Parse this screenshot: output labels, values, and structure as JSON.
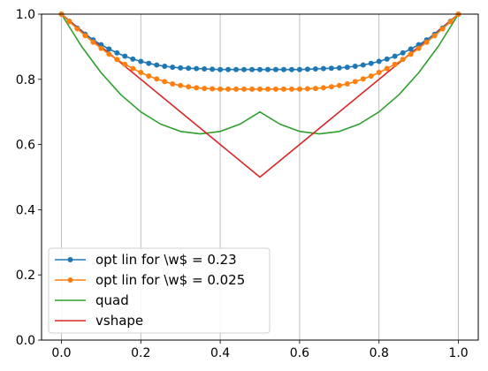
{
  "chart_data": {
    "type": "line",
    "title": "",
    "xlabel": "",
    "ylabel": "",
    "xlim": [
      -0.05,
      1.05
    ],
    "ylim": [
      0.0,
      1.0
    ],
    "xticks": [
      0.0,
      0.2,
      0.4,
      0.6,
      0.8,
      1.0
    ],
    "xtick_labels": [
      "0.0",
      "0.2",
      "0.4",
      "0.6",
      "0.8",
      "1.0"
    ],
    "yticks": [
      0.0,
      0.2,
      0.4,
      0.6,
      0.8,
      1.0
    ],
    "ytick_labels": [
      "0.0",
      "0.2",
      "0.4",
      "0.6",
      "0.8",
      "1.0"
    ],
    "grid": "vertical",
    "legend_position": "lower-left",
    "series": [
      {
        "name": "opt lin for \\w$ = 0.23",
        "color": "#1f77b4",
        "marker": "dot",
        "x": [
          0.0,
          0.02,
          0.04,
          0.06,
          0.08,
          0.1,
          0.12,
          0.14,
          0.16,
          0.18,
          0.2,
          0.22,
          0.24,
          0.26,
          0.28,
          0.3,
          0.32,
          0.34,
          0.36,
          0.38,
          0.4,
          0.42,
          0.44,
          0.46,
          0.48,
          0.5,
          0.52,
          0.54,
          0.56,
          0.58,
          0.6,
          0.62,
          0.64,
          0.66,
          0.68,
          0.7,
          0.72,
          0.74,
          0.76,
          0.78,
          0.8,
          0.82,
          0.84,
          0.86,
          0.88,
          0.9,
          0.92,
          0.94,
          0.96,
          0.98,
          1.0
        ],
        "y": [
          1.0,
          0.978,
          0.957,
          0.938,
          0.921,
          0.906,
          0.893,
          0.881,
          0.871,
          0.862,
          0.855,
          0.849,
          0.844,
          0.84,
          0.837,
          0.835,
          0.834,
          0.833,
          0.832,
          0.831,
          0.83,
          0.83,
          0.83,
          0.83,
          0.83,
          0.83,
          0.83,
          0.83,
          0.83,
          0.83,
          0.83,
          0.831,
          0.832,
          0.833,
          0.834,
          0.835,
          0.837,
          0.84,
          0.844,
          0.849,
          0.855,
          0.862,
          0.871,
          0.881,
          0.893,
          0.906,
          0.921,
          0.938,
          0.957,
          0.978,
          1.0
        ]
      },
      {
        "name": "opt lin for \\w$ = 0.025",
        "color": "#ff7f0e",
        "marker": "dot",
        "x": [
          0.0,
          0.02,
          0.04,
          0.06,
          0.08,
          0.1,
          0.12,
          0.14,
          0.16,
          0.18,
          0.2,
          0.22,
          0.24,
          0.26,
          0.28,
          0.3,
          0.32,
          0.34,
          0.36,
          0.38,
          0.4,
          0.42,
          0.44,
          0.46,
          0.48,
          0.5,
          0.52,
          0.54,
          0.56,
          0.58,
          0.6,
          0.62,
          0.64,
          0.66,
          0.68,
          0.7,
          0.72,
          0.74,
          0.76,
          0.78,
          0.8,
          0.82,
          0.84,
          0.86,
          0.88,
          0.9,
          0.92,
          0.94,
          0.96,
          0.98,
          1.0
        ],
        "y": [
          1.0,
          0.977,
          0.955,
          0.934,
          0.914,
          0.895,
          0.877,
          0.861,
          0.846,
          0.833,
          0.821,
          0.81,
          0.801,
          0.793,
          0.786,
          0.781,
          0.777,
          0.774,
          0.772,
          0.771,
          0.77,
          0.77,
          0.77,
          0.77,
          0.77,
          0.77,
          0.77,
          0.77,
          0.77,
          0.77,
          0.77,
          0.771,
          0.772,
          0.774,
          0.777,
          0.781,
          0.786,
          0.793,
          0.801,
          0.81,
          0.821,
          0.833,
          0.846,
          0.861,
          0.877,
          0.895,
          0.914,
          0.934,
          0.955,
          0.977,
          1.0
        ]
      },
      {
        "name": "quad",
        "color": "#2ca02c",
        "marker": "none",
        "x": [
          0.0,
          0.05,
          0.1,
          0.15,
          0.2,
          0.25,
          0.3,
          0.35,
          0.4,
          0.45,
          0.5,
          0.55,
          0.6,
          0.65,
          0.7,
          0.75,
          0.8,
          0.85,
          0.9,
          0.95,
          1.0
        ],
        "y": [
          1.0,
          0.9025,
          0.82,
          0.7525,
          0.7,
          0.6625,
          0.64,
          0.6325,
          0.64,
          0.6625,
          0.7,
          0.6625,
          0.64,
          0.6325,
          0.64,
          0.6625,
          0.7,
          0.7525,
          0.82,
          0.9025,
          1.0
        ]
      },
      {
        "name": "vshape",
        "color": "#d62728",
        "marker": "none",
        "x": [
          0.0,
          0.5,
          1.0
        ],
        "y": [
          1.0,
          0.5,
          1.0
        ]
      }
    ]
  }
}
